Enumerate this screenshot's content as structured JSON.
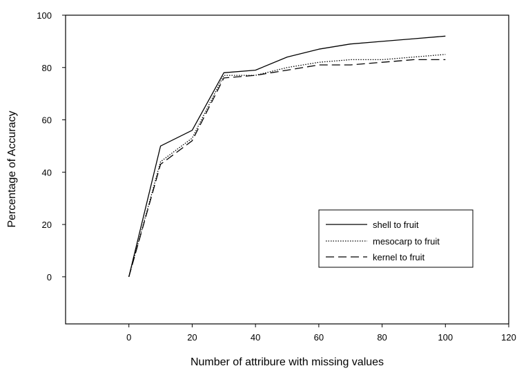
{
  "chart_data": {
    "type": "line",
    "title": "",
    "xlabel": "Number of attribure with missing values",
    "ylabel": "Percentage of Accuracy",
    "xlim": [
      -20,
      120
    ],
    "ylim": [
      -18,
      100
    ],
    "xticks": [
      0,
      20,
      40,
      60,
      80,
      100,
      120
    ],
    "yticks": [
      0,
      20,
      40,
      60,
      80,
      100
    ],
    "grid": false,
    "legend_position": "lower-right",
    "x": [
      0,
      10,
      20,
      30,
      40,
      50,
      60,
      70,
      80,
      90,
      100
    ],
    "series": [
      {
        "name": "shell to fruit",
        "line_style": "solid",
        "values": [
          0,
          50,
          56,
          78,
          79,
          84,
          87,
          89,
          90,
          91,
          92
        ]
      },
      {
        "name": "mesocarp to fruit",
        "line_style": "dotted",
        "values": [
          0,
          44,
          53,
          77,
          77,
          80,
          82,
          83,
          83,
          84,
          85
        ]
      },
      {
        "name": "kernel to fruit",
        "line_style": "dashed",
        "values": [
          0,
          43,
          52,
          76,
          77,
          79,
          81,
          81,
          82,
          83,
          83
        ]
      }
    ]
  }
}
